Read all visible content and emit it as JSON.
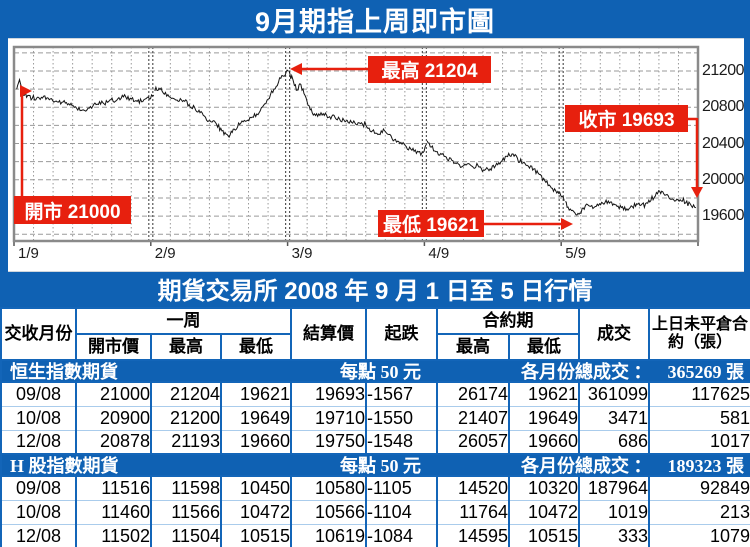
{
  "chart_data": {
    "type": "line",
    "title": "9月期指上周即市圖",
    "x_axis": {
      "labels": [
        "1/9",
        "2/9",
        "3/9",
        "4/9",
        "5/9"
      ],
      "boundaries_frac": [
        0,
        0.2,
        0.4,
        0.6,
        0.8,
        1
      ]
    },
    "y_axis": {
      "ticks": [
        21200,
        20800,
        20400,
        20000,
        19600
      ],
      "gridline_step": 200,
      "value_at_top": 21465,
      "value_at_bottom": 19325
    },
    "annotations": {
      "open": {
        "label": "開市 21000",
        "value": 21000,
        "x_frac": 0
      },
      "high": {
        "label": "最高 21204",
        "value": 21204,
        "x_frac": 0.402
      },
      "low": {
        "label": "最低 19621",
        "value": 19621,
        "x_frac": 0.826
      },
      "close": {
        "label": "收市 19693",
        "value": 19693,
        "x_frac": 1
      }
    },
    "series": [
      {
        "name": "9月期指",
        "points": [
          [
            0.004,
            21000
          ],
          [
            0.008,
            21105
          ],
          [
            0.012,
            20960
          ],
          [
            0.02,
            20930
          ],
          [
            0.03,
            20880
          ],
          [
            0.04,
            20910
          ],
          [
            0.05,
            20900
          ],
          [
            0.06,
            20865
          ],
          [
            0.07,
            20855
          ],
          [
            0.08,
            20840
          ],
          [
            0.09,
            20805
          ],
          [
            0.1,
            20770
          ],
          [
            0.11,
            20790
          ],
          [
            0.12,
            20830
          ],
          [
            0.13,
            20850
          ],
          [
            0.14,
            20880
          ],
          [
            0.15,
            20875
          ],
          [
            0.16,
            20915
          ],
          [
            0.17,
            20900
          ],
          [
            0.18,
            20865
          ],
          [
            0.19,
            20885
          ],
          [
            0.198,
            20890
          ],
          [
            0.206,
            20980
          ],
          [
            0.212,
            21010
          ],
          [
            0.218,
            20960
          ],
          [
            0.225,
            20940
          ],
          [
            0.232,
            20900
          ],
          [
            0.24,
            20865
          ],
          [
            0.248,
            20875
          ],
          [
            0.256,
            20830
          ],
          [
            0.264,
            20800
          ],
          [
            0.272,
            20740
          ],
          [
            0.28,
            20690
          ],
          [
            0.288,
            20640
          ],
          [
            0.296,
            20615
          ],
          [
            0.304,
            20540
          ],
          [
            0.31,
            20505
          ],
          [
            0.316,
            20495
          ],
          [
            0.322,
            20560
          ],
          [
            0.33,
            20610
          ],
          [
            0.34,
            20650
          ],
          [
            0.35,
            20690
          ],
          [
            0.36,
            20760
          ],
          [
            0.37,
            20880
          ],
          [
            0.38,
            21000
          ],
          [
            0.39,
            21120
          ],
          [
            0.398,
            21190
          ],
          [
            0.402,
            21204
          ],
          [
            0.406,
            21150
          ],
          [
            0.41,
            21040
          ],
          [
            0.414,
            20990
          ],
          [
            0.418,
            21060
          ],
          [
            0.424,
            20950
          ],
          [
            0.43,
            20820
          ],
          [
            0.436,
            20740
          ],
          [
            0.444,
            20700
          ],
          [
            0.452,
            20730
          ],
          [
            0.46,
            20690
          ],
          [
            0.468,
            20710
          ],
          [
            0.476,
            20670
          ],
          [
            0.484,
            20640
          ],
          [
            0.492,
            20655
          ],
          [
            0.5,
            20610
          ],
          [
            0.508,
            20630
          ],
          [
            0.516,
            20580
          ],
          [
            0.524,
            20540
          ],
          [
            0.532,
            20500
          ],
          [
            0.54,
            20560
          ],
          [
            0.548,
            20500
          ],
          [
            0.556,
            20440
          ],
          [
            0.564,
            20400
          ],
          [
            0.572,
            20380
          ],
          [
            0.58,
            20340
          ],
          [
            0.59,
            20315
          ],
          [
            0.598,
            20300
          ],
          [
            0.604,
            20430
          ],
          [
            0.61,
            20360
          ],
          [
            0.617,
            20310
          ],
          [
            0.624,
            20290
          ],
          [
            0.632,
            20250
          ],
          [
            0.64,
            20215
          ],
          [
            0.648,
            20190
          ],
          [
            0.656,
            20150
          ],
          [
            0.664,
            20180
          ],
          [
            0.672,
            20130
          ],
          [
            0.68,
            20140
          ],
          [
            0.688,
            20105
          ],
          [
            0.696,
            20120
          ],
          [
            0.704,
            20155
          ],
          [
            0.712,
            20200
          ],
          [
            0.72,
            20260
          ],
          [
            0.728,
            20285
          ],
          [
            0.736,
            20240
          ],
          [
            0.744,
            20185
          ],
          [
            0.752,
            20150
          ],
          [
            0.76,
            20120
          ],
          [
            0.768,
            20060
          ],
          [
            0.776,
            19990
          ],
          [
            0.784,
            19930
          ],
          [
            0.792,
            19880
          ],
          [
            0.798,
            19860
          ],
          [
            0.806,
            19760
          ],
          [
            0.81,
            19700
          ],
          [
            0.815,
            19660
          ],
          [
            0.82,
            19635
          ],
          [
            0.826,
            19621
          ],
          [
            0.832,
            19690
          ],
          [
            0.84,
            19715
          ],
          [
            0.848,
            19695
          ],
          [
            0.856,
            19735
          ],
          [
            0.864,
            19750
          ],
          [
            0.872,
            19755
          ],
          [
            0.88,
            19725
          ],
          [
            0.888,
            19695
          ],
          [
            0.896,
            19680
          ],
          [
            0.904,
            19705
          ],
          [
            0.912,
            19730
          ],
          [
            0.92,
            19745
          ],
          [
            0.928,
            19775
          ],
          [
            0.936,
            19805
          ],
          [
            0.944,
            19875
          ],
          [
            0.95,
            19845
          ],
          [
            0.958,
            19795
          ],
          [
            0.966,
            19765
          ],
          [
            0.974,
            19780
          ],
          [
            0.982,
            19745
          ],
          [
            0.99,
            19715
          ],
          [
            0.997,
            19693
          ]
        ]
      }
    ]
  },
  "table": {
    "title": "期貨交易所 2008 年 9 月 1 日至 5 日行情",
    "headers": {
      "month": "交收月份",
      "week": "一周",
      "open": "開市價",
      "high": "最高",
      "low": "最低",
      "settle": "結算價",
      "change": "起跌",
      "contract": "合約期",
      "contract_high": "最高",
      "contract_low": "最低",
      "volume": "成交",
      "open_interest": "上日未平倉合約（張）"
    },
    "sections": [
      {
        "name": "恒生指數期貨",
        "per_point": "每點 50 元",
        "total_label": "各月份總成交 ：",
        "total_value": "365269 張",
        "rows": [
          [
            "09/08",
            "21000",
            "21204",
            "19621",
            "19693",
            "-1567",
            "26174",
            "19621",
            "361099",
            "117625"
          ],
          [
            "10/08",
            "20900",
            "21200",
            "19649",
            "19710",
            "-1550",
            "21407",
            "19649",
            "3471",
            "581"
          ],
          [
            "12/08",
            "20878",
            "21193",
            "19660",
            "19750",
            "-1548",
            "26057",
            "19660",
            "686",
            "1017"
          ]
        ]
      },
      {
        "name": "H 股指數期貨",
        "per_point": "每點 50 元",
        "total_label": "各月份總成交 ：",
        "total_value": "189323 張",
        "rows": [
          [
            "09/08",
            "11516",
            "11598",
            "10450",
            "10580",
            "-1105",
            "14520",
            "10320",
            "187964",
            "92849"
          ],
          [
            "10/08",
            "11460",
            "11566",
            "10472",
            "10566",
            "-1104",
            "11764",
            "10472",
            "1019",
            "213"
          ],
          [
            "12/08",
            "11502",
            "11504",
            "10515",
            "10619",
            "-1084",
            "14595",
            "10515",
            "333",
            "1079"
          ]
        ]
      }
    ]
  },
  "colors": {
    "blue": "#0f61b3",
    "table_border_blue": "#1365b8",
    "red": "#e7200e",
    "line_black": "#141414",
    "grid_gray": "#9a9a9a"
  }
}
